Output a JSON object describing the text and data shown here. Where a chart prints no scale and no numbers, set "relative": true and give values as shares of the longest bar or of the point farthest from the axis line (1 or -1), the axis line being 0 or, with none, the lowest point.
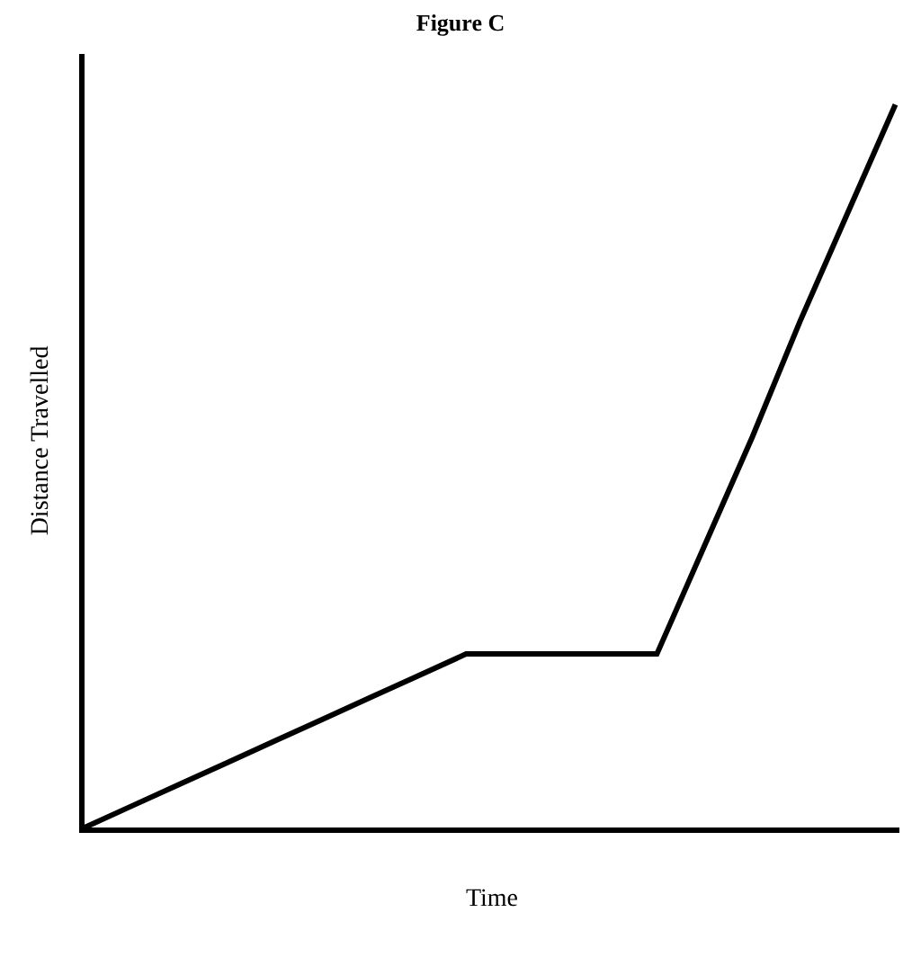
{
  "chart_data": {
    "type": "line",
    "title": "Figure C",
    "xlabel": "Time",
    "ylabel": "Distance Travelled",
    "relative": true,
    "marker": "none",
    "line_style": "solid",
    "categories": [
      null,
      null,
      null,
      null,
      null,
      null,
      null,
      null,
      null,
      null,
      null,
      null,
      null,
      null,
      null,
      null,
      null,
      null
    ],
    "series": [
      {
        "values": [
          0,
          0.03,
          0.06,
          0.09,
          0.12,
          0.15,
          0.18,
          0.21,
          0.24,
          0.24,
          0.24,
          0.24,
          0.24,
          0.39,
          0.54,
          0.7,
          0.85,
          1.0
        ],
        "color": "#000000"
      }
    ]
  }
}
